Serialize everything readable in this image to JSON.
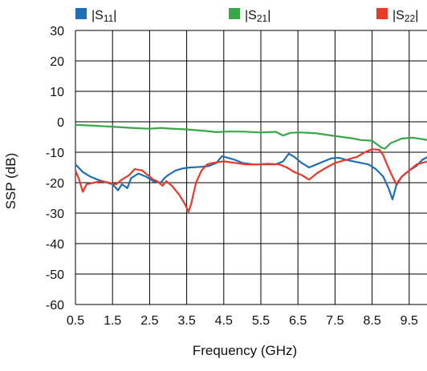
{
  "chart_data": {
    "type": "line",
    "title": "",
    "xlabel": "Frequency (GHz)",
    "ylabel": "SSP (dB)",
    "xlim": [
      0.5,
      10.0
    ],
    "ylim": [
      -60,
      30
    ],
    "x_ticks": [
      "0.5",
      "1.5",
      "2.5",
      "3.5",
      "4.5",
      "5.5",
      "6.5",
      "7.5",
      "8.5",
      "9.5"
    ],
    "y_ticks": [
      "30",
      "20",
      "10",
      "0",
      "-10",
      "-20",
      "-30",
      "-40",
      "-50",
      "-60"
    ],
    "grid": true,
    "legend_position": "top",
    "series": [
      {
        "name": "S11",
        "color": "#1f6fb6",
        "points": [
          [
            0.5,
            -14
          ],
          [
            0.7,
            -16.5
          ],
          [
            0.9,
            -18
          ],
          [
            1.1,
            -19
          ],
          [
            1.3,
            -19.8
          ],
          [
            1.5,
            -20.5
          ],
          [
            1.65,
            -22.5
          ],
          [
            1.75,
            -20.5
          ],
          [
            1.9,
            -21.8
          ],
          [
            2.0,
            -18.5
          ],
          [
            2.2,
            -17
          ],
          [
            2.4,
            -18
          ],
          [
            2.6,
            -19.5
          ],
          [
            2.8,
            -20
          ],
          [
            2.9,
            -18.5
          ],
          [
            3.0,
            -17.5
          ],
          [
            3.2,
            -16
          ],
          [
            3.4,
            -15.3
          ],
          [
            3.6,
            -15
          ],
          [
            3.9,
            -14.8
          ],
          [
            4.1,
            -14.5
          ],
          [
            4.3,
            -13.5
          ],
          [
            4.45,
            -11.3
          ],
          [
            4.6,
            -11.8
          ],
          [
            4.8,
            -12.5
          ],
          [
            5.0,
            -13.5
          ],
          [
            5.3,
            -14
          ],
          [
            5.6,
            -14
          ],
          [
            5.9,
            -14
          ],
          [
            6.1,
            -13
          ],
          [
            6.25,
            -10.5
          ],
          [
            6.4,
            -11.5
          ],
          [
            6.6,
            -13.5
          ],
          [
            6.8,
            -15
          ],
          [
            7.0,
            -14
          ],
          [
            7.2,
            -13
          ],
          [
            7.4,
            -12
          ],
          [
            7.6,
            -11.8
          ],
          [
            7.8,
            -12.5
          ],
          [
            8.0,
            -13
          ],
          [
            8.2,
            -13.5
          ],
          [
            8.4,
            -14
          ],
          [
            8.6,
            -15.5
          ],
          [
            8.8,
            -18
          ],
          [
            8.95,
            -22
          ],
          [
            9.05,
            -25.5
          ],
          [
            9.15,
            -21
          ],
          [
            9.3,
            -18
          ],
          [
            9.5,
            -16
          ],
          [
            9.7,
            -14.5
          ],
          [
            9.85,
            -12.5
          ],
          [
            10.0,
            -11.5
          ]
        ]
      },
      {
        "name": "S21",
        "color": "#3aa64a",
        "points": [
          [
            0.5,
            -1
          ],
          [
            1.0,
            -1.3
          ],
          [
            1.5,
            -1.6
          ],
          [
            2.0,
            -2
          ],
          [
            2.5,
            -2.3
          ],
          [
            2.8,
            -2
          ],
          [
            3.0,
            -2.2
          ],
          [
            3.5,
            -2.5
          ],
          [
            4.0,
            -3
          ],
          [
            4.3,
            -3.4
          ],
          [
            4.6,
            -3.2
          ],
          [
            5.0,
            -3.2
          ],
          [
            5.5,
            -3.5
          ],
          [
            5.9,
            -3.3
          ],
          [
            6.1,
            -4.5
          ],
          [
            6.3,
            -3.6
          ],
          [
            6.6,
            -3.5
          ],
          [
            7.0,
            -3.8
          ],
          [
            7.4,
            -4.5
          ],
          [
            7.7,
            -5
          ],
          [
            8.0,
            -5.5
          ],
          [
            8.2,
            -6
          ],
          [
            8.5,
            -6.2
          ],
          [
            8.75,
            -8.5
          ],
          [
            8.85,
            -8.8
          ],
          [
            9.0,
            -7
          ],
          [
            9.3,
            -5.5
          ],
          [
            9.6,
            -5.2
          ],
          [
            10.0,
            -6
          ]
        ]
      },
      {
        "name": "S22",
        "color": "#e8392b",
        "points": [
          [
            0.5,
            -16
          ],
          [
            0.6,
            -19
          ],
          [
            0.7,
            -23
          ],
          [
            0.8,
            -20.5
          ],
          [
            1.0,
            -20
          ],
          [
            1.2,
            -19.5
          ],
          [
            1.4,
            -20
          ],
          [
            1.6,
            -20.5
          ],
          [
            1.75,
            -19
          ],
          [
            1.95,
            -17.5
          ],
          [
            2.1,
            -15.5
          ],
          [
            2.3,
            -16
          ],
          [
            2.45,
            -17.5
          ],
          [
            2.6,
            -19
          ],
          [
            2.7,
            -19.5
          ],
          [
            2.85,
            -21
          ],
          [
            2.95,
            -19.5
          ],
          [
            3.1,
            -21
          ],
          [
            3.3,
            -24
          ],
          [
            3.45,
            -27
          ],
          [
            3.55,
            -29.5
          ],
          [
            3.62,
            -27
          ],
          [
            3.75,
            -20
          ],
          [
            3.9,
            -16
          ],
          [
            4.05,
            -14
          ],
          [
            4.2,
            -13.5
          ],
          [
            4.5,
            -13
          ],
          [
            4.8,
            -13.5
          ],
          [
            5.1,
            -14
          ],
          [
            5.4,
            -14
          ],
          [
            5.7,
            -13.8
          ],
          [
            6.0,
            -14
          ],
          [
            6.2,
            -15
          ],
          [
            6.4,
            -16.5
          ],
          [
            6.6,
            -17.5
          ],
          [
            6.8,
            -19
          ],
          [
            7.0,
            -17
          ],
          [
            7.2,
            -15.5
          ],
          [
            7.5,
            -13.5
          ],
          [
            7.8,
            -12.5
          ],
          [
            8.1,
            -11.5
          ],
          [
            8.3,
            -10
          ],
          [
            8.5,
            -9
          ],
          [
            8.7,
            -9.2
          ],
          [
            8.8,
            -11
          ],
          [
            8.9,
            -14
          ],
          [
            9.05,
            -18
          ],
          [
            9.15,
            -20.5
          ],
          [
            9.3,
            -18
          ],
          [
            9.5,
            -16
          ],
          [
            9.7,
            -14
          ],
          [
            10.0,
            -13
          ]
        ]
      }
    ]
  },
  "legend": {
    "items": [
      {
        "label": "|S11|",
        "prefix": "|S",
        "sub": "11",
        "suffix": "|",
        "color": "#1f6fb6"
      },
      {
        "label": "|S21|",
        "prefix": "|S",
        "sub": "21",
        "suffix": "|",
        "color": "#3aa64a"
      },
      {
        "label": "|S22|",
        "prefix": "|S",
        "sub": "22",
        "suffix": "|",
        "color": "#e8392b"
      }
    ]
  }
}
